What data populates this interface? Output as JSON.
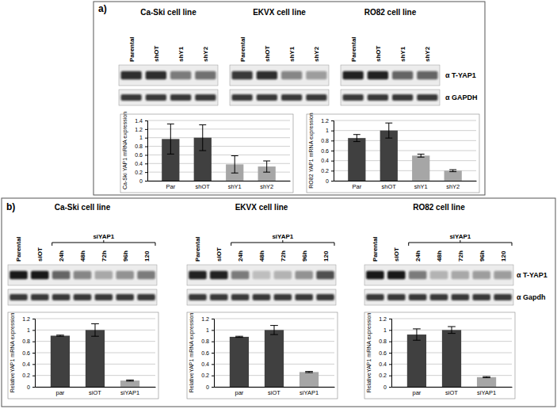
{
  "panels": [
    {
      "label": "a)",
      "blots": [
        {
          "title": "Ca-Ski cell line",
          "lanes": [
            "Parental",
            "shOT",
            "shY1",
            "shY2"
          ]
        },
        {
          "title": "EKVX cell line",
          "lanes": [
            "Parental",
            "shOT",
            "shY1",
            "shY2"
          ]
        },
        {
          "title": "RO82 cell line",
          "lanes": [
            "Parental",
            "shOT",
            "shY1",
            "shY2"
          ]
        }
      ],
      "antibodies": [
        "α T-YAP1",
        "α GAPDH"
      ]
    },
    {
      "label": "b)",
      "blots": [
        {
          "title": "Ca-Ski cell line",
          "lanes": [
            "Parental",
            "siOT",
            "24h",
            "48h",
            "72h",
            "96h",
            "120"
          ],
          "group": "siYAP1"
        },
        {
          "title": "EKVX cell line",
          "lanes": [
            "Parental",
            "siOT",
            "24h",
            "48h",
            "72h",
            "96h",
            "120"
          ],
          "group": "siYAP1"
        },
        {
          "title": "RO82 cell line",
          "lanes": [
            "Parental",
            "siOT",
            "24h",
            "48h",
            "72h",
            "96h",
            "120"
          ],
          "group": "siYAP1"
        }
      ],
      "antibodies": [
        "α T-YAP1",
        "α Gapdh"
      ]
    }
  ],
  "chart_data": [
    {
      "type": "bar",
      "ylabel": "Ca-Ski YAP1 mRNA expression",
      "categories": [
        "Par",
        "shOT",
        "shY1",
        "shY2"
      ],
      "values": [
        0.97,
        1.0,
        0.38,
        0.33
      ],
      "errors": [
        0.35,
        0.3,
        0.2,
        0.13
      ],
      "colors": [
        "#404040",
        "#404040",
        "#a6a6a6",
        "#a6a6a6"
      ],
      "ylim": [
        0,
        1.4
      ],
      "yticks": [
        0,
        0.2,
        0.4,
        0.6,
        0.8,
        1,
        1.2,
        1.4
      ],
      "grid": true
    },
    {
      "type": "bar",
      "ylabel": "RO82 YAP1 mRNA expression",
      "categories": [
        "Par",
        "shOT",
        "shY1",
        "shY2"
      ],
      "values": [
        0.85,
        1.0,
        0.5,
        0.2
      ],
      "errors": [
        0.07,
        0.15,
        0.03,
        0.02
      ],
      "colors": [
        "#404040",
        "#404040",
        "#a6a6a6",
        "#a6a6a6"
      ],
      "ylim": [
        0,
        1.2
      ],
      "yticks": [
        0,
        0.2,
        0.4,
        0.6,
        0.8,
        1,
        1.2
      ],
      "grid": true
    },
    {
      "type": "bar",
      "ylabel": "RelativeYAP1 mRNA expression",
      "categories": [
        "par",
        "siOT",
        "siYAP1"
      ],
      "values": [
        0.9,
        1.0,
        0.11
      ],
      "errors": [
        0.01,
        0.11,
        0.01
      ],
      "colors": [
        "#404040",
        "#404040",
        "#a6a6a6"
      ],
      "ylim": [
        0,
        1.2
      ],
      "yticks": [
        0,
        0.2,
        0.4,
        0.6,
        0.8,
        1,
        1.2
      ],
      "grid": true
    },
    {
      "type": "bar",
      "ylabel": "RelativeYAP1 mRNA expression",
      "categories": [
        "par",
        "siOT",
        "siYAP1"
      ],
      "values": [
        0.88,
        1.0,
        0.26
      ],
      "errors": [
        0.01,
        0.08,
        0.01
      ],
      "colors": [
        "#404040",
        "#404040",
        "#a6a6a6"
      ],
      "ylim": [
        0,
        1.2
      ],
      "yticks": [
        0,
        0.2,
        0.4,
        0.6,
        0.8,
        1,
        1.2
      ],
      "grid": true
    },
    {
      "type": "bar",
      "ylabel": "RelativeYAP1 mRNA expression",
      "categories": [
        "par",
        "siOT",
        "siYAP1"
      ],
      "values": [
        0.92,
        1.0,
        0.17
      ],
      "errors": [
        0.1,
        0.06,
        0.01
      ],
      "colors": [
        "#404040",
        "#404040",
        "#a6a6a6"
      ],
      "ylim": [
        0,
        1.2
      ],
      "yticks": [
        0,
        0.2,
        0.4,
        0.6,
        0.8,
        1,
        1.2
      ],
      "grid": true
    }
  ]
}
